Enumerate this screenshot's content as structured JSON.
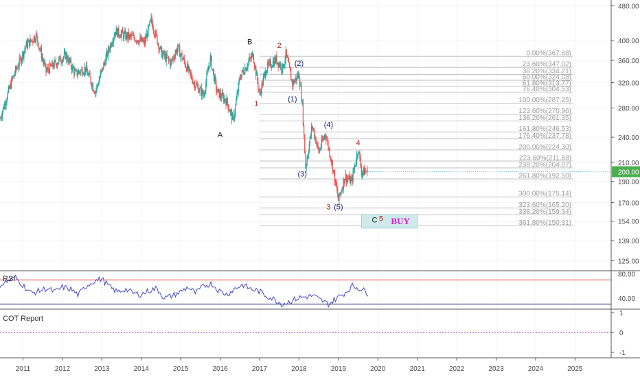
{
  "chart_data": {
    "type": "candlestick",
    "price_axis": {
      "scale": "log",
      "ticks": [
        "480.00",
        "400.00",
        "360.00",
        "320.00",
        "280.00",
        "240.00",
        "210.00",
        "190.00",
        "170.00",
        "154.00",
        "139.00",
        "125.00"
      ],
      "tick_values": [
        480,
        400,
        360,
        320,
        280,
        240,
        210,
        190,
        170,
        154,
        139,
        125
      ],
      "current_price": "200.00",
      "current_price_value": 200,
      "range": [
        119,
        495
      ]
    },
    "time_axis": {
      "ticks": [
        "2011",
        "2012",
        "2013",
        "2014",
        "2015",
        "2016",
        "2017",
        "2018",
        "2019",
        "2020",
        "2021",
        "2022",
        "2023",
        "2024",
        "2025"
      ],
      "range": [
        "2010-06",
        "2025-12"
      ]
    },
    "price_path": [
      [
        "2010-06",
        265
      ],
      [
        "2010-10",
        330
      ],
      [
        "2011-02",
        390
      ],
      [
        "2011-05",
        410
      ],
      [
        "2011-08",
        340
      ],
      [
        "2011-11",
        355
      ],
      [
        "2012-02",
        370
      ],
      [
        "2012-05",
        335
      ],
      [
        "2012-08",
        345
      ],
      [
        "2012-11",
        305
      ],
      [
        "2013-02",
        360
      ],
      [
        "2013-05",
        420
      ],
      [
        "2013-08",
        410
      ],
      [
        "2013-11",
        405
      ],
      [
        "2014-02",
        395
      ],
      [
        "2014-04",
        445
      ],
      [
        "2014-07",
        375
      ],
      [
        "2014-10",
        355
      ],
      [
        "2014-12",
        385
      ],
      [
        "2015-03",
        345
      ],
      [
        "2015-05",
        320
      ],
      [
        "2015-08",
        300
      ],
      [
        "2015-10",
        365
      ],
      [
        "2015-12",
        305
      ],
      [
        "2016-03",
        290
      ],
      [
        "2016-05",
        262
      ],
      [
        "2016-07",
        330
      ],
      [
        "2016-09",
        350
      ],
      [
        "2016-11",
        372
      ],
      [
        "2017-01",
        300
      ],
      [
        "2017-03",
        345
      ],
      [
        "2017-06",
        362
      ],
      [
        "2017-08",
        345
      ],
      [
        "2017-09",
        372
      ],
      [
        "2017-11",
        318
      ],
      [
        "2018-01",
        335
      ],
      [
        "2018-02",
        285
      ],
      [
        "2018-03",
        205
      ],
      [
        "2018-05",
        255
      ],
      [
        "2018-07",
        222
      ],
      [
        "2018-09",
        245
      ],
      [
        "2018-11",
        210
      ],
      [
        "2019-01",
        172
      ],
      [
        "2019-03",
        195
      ],
      [
        "2019-05",
        190
      ],
      [
        "2019-07",
        226
      ],
      [
        "2019-08",
        200
      ],
      [
        "2019-10",
        200
      ]
    ],
    "fibonacci_levels": [
      {
        "label": "0.00%(367.68)",
        "value": 367.68
      },
      {
        "label": "23.60%(347.02)",
        "value": 347.02
      },
      {
        "label": "38.20%(334.21)",
        "value": 334.21
      },
      {
        "label": "50.00%(324.08)",
        "value": 324.08
      },
      {
        "label": "61.80%(313.77)",
        "value": 313.77
      },
      {
        "label": "76.40%(304.53)",
        "value": 304.53
      },
      {
        "label": "100.00%(287.25)",
        "value": 287.25
      },
      {
        "label": "123.60%(270.96)",
        "value": 270.96
      },
      {
        "label": "138.20%(261.35)",
        "value": 261.35
      },
      {
        "label": "161.80%(246.53)",
        "value": 246.53
      },
      {
        "label": "176.40%(237.78)",
        "value": 237.78
      },
      {
        "label": "200.00%(224.30)",
        "value": 224.3
      },
      {
        "label": "223.60%(211.58)",
        "value": 211.58
      },
      {
        "label": "238.20%(204.07)",
        "value": 204.07
      },
      {
        "label": "261.80%(192.50)",
        "value": 192.5
      },
      {
        "label": "300.00%(175.14)",
        "value": 175.14
      },
      {
        "label": "323.60%(165.20)",
        "value": 165.2
      },
      {
        "label": "338.20%(159.34)",
        "value": 159.34
      },
      {
        "label": "361.80%(150.31)",
        "value": 150.31
      }
    ],
    "wave_labels": [
      {
        "text": "A",
        "date": "2016-01",
        "price": 240,
        "color": "#222222"
      },
      {
        "text": "B",
        "date": "2016-10",
        "price": 392,
        "color": "#222222"
      },
      {
        "text": "1",
        "date": "2016-12",
        "price": 283,
        "color": "#b71c1c"
      },
      {
        "text": "2",
        "date": "2017-07",
        "price": 384,
        "color": "#b71c1c"
      },
      {
        "text": "(2)",
        "date": "2018-01",
        "price": 350,
        "color": "#1a237e"
      },
      {
        "text": "(1)",
        "date": "2017-11",
        "price": 290,
        "color": "#1a237e"
      },
      {
        "text": "(3)",
        "date": "2018-02",
        "price": 195,
        "color": "#1a237e"
      },
      {
        "text": "(4)",
        "date": "2018-10",
        "price": 253,
        "color": "#1a237e"
      },
      {
        "text": "(5)",
        "date": "2019-01",
        "price": 164,
        "color": "#1a237e"
      },
      {
        "text": "3",
        "date": "2018-10",
        "price": 164,
        "color": "#b71c1c"
      },
      {
        "text": "4",
        "date": "2019-07",
        "price": 230,
        "color": "#b71c1c"
      },
      {
        "text": "C",
        "date": "2019-12",
        "price": 153,
        "color": "#222222"
      },
      {
        "text": "5",
        "date": "2020-02",
        "price": 154,
        "color": "#b71c1c"
      }
    ],
    "target_box": {
      "label": "BUY",
      "date_from": "2019-08",
      "date_to": "2021-01",
      "price_from": 148.5,
      "price_to": 159.5
    },
    "indicators": [
      {
        "name": "RSI",
        "levels": [
          70,
          30
        ],
        "tick_labels": [
          "80.00",
          "40.00"
        ],
        "tick_values": [
          80,
          40
        ],
        "range": [
          24,
          84
        ],
        "series_color": "#3f48cc",
        "upper_color": "#e53935",
        "lower_color": "#1a237e",
        "values": [
          62,
          68,
          74,
          60,
          48,
          52,
          56,
          50,
          58,
          55,
          45,
          60,
          68,
          72,
          58,
          50,
          55,
          48,
          46,
          52,
          56,
          40,
          44,
          50,
          58,
          48,
          60,
          64,
          52,
          46,
          56,
          62,
          55,
          52,
          44,
          38,
          30,
          34,
          40,
          42,
          44,
          36,
          30,
          40,
          48,
          60,
          56,
          48
        ]
      },
      {
        "name": "COT Report",
        "tick_labels": [
          "1",
          "0",
          "-1"
        ],
        "tick_values": [
          1,
          0,
          -1
        ],
        "zero_color": "#9c27b0"
      }
    ]
  }
}
